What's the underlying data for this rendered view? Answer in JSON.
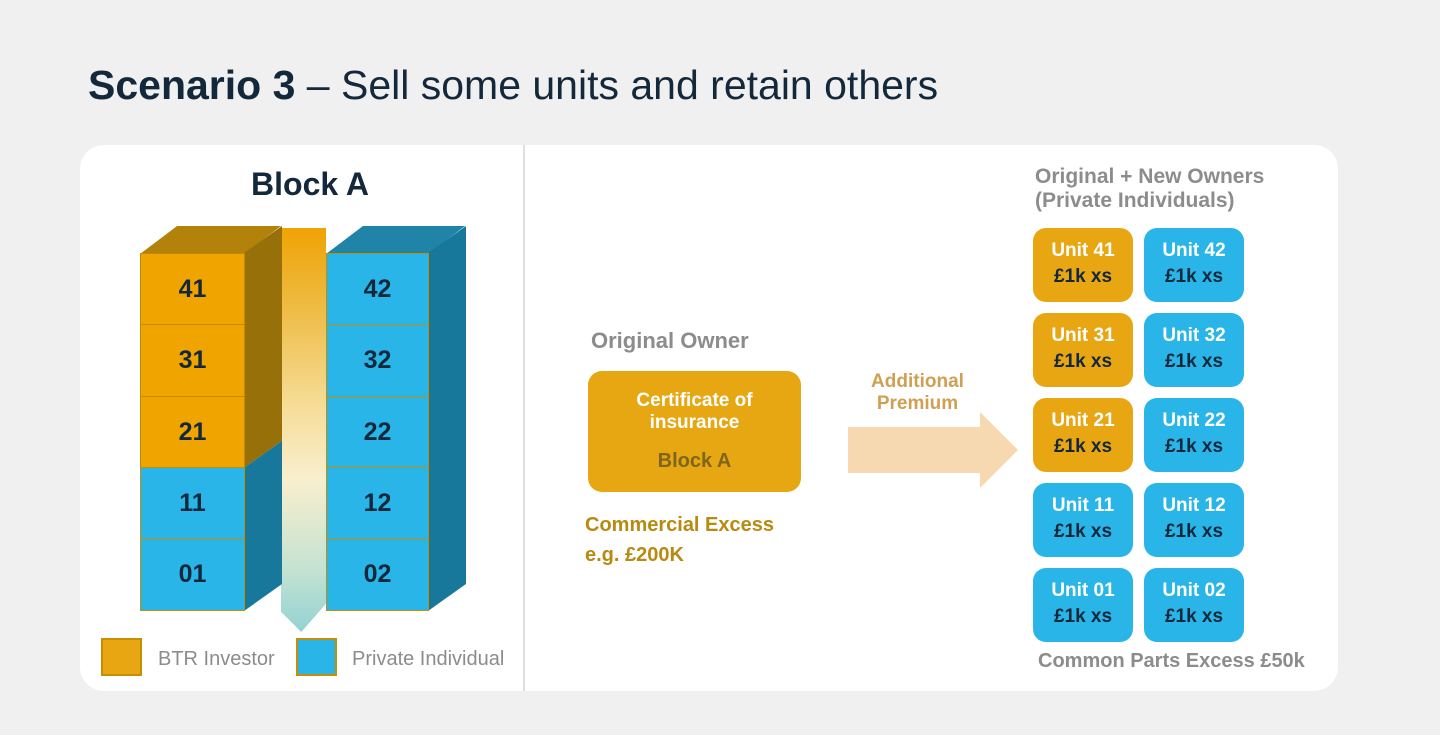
{
  "title": {
    "emphasis": "Scenario 3",
    "rest": " – Sell some units and retain others"
  },
  "block": {
    "heading": "Block A",
    "left_tower": [
      {
        "label": "41",
        "type": "btr"
      },
      {
        "label": "31",
        "type": "btr"
      },
      {
        "label": "21",
        "type": "btr"
      },
      {
        "label": "11",
        "type": "private"
      },
      {
        "label": "01",
        "type": "private"
      }
    ],
    "right_tower": [
      {
        "label": "42",
        "type": "private"
      },
      {
        "label": "32",
        "type": "private"
      },
      {
        "label": "22",
        "type": "private"
      },
      {
        "label": "12",
        "type": "private"
      },
      {
        "label": "02",
        "type": "private"
      }
    ],
    "legend": [
      {
        "label": "BTR Investor",
        "type": "btr"
      },
      {
        "label": "Private Individual",
        "type": "private"
      }
    ]
  },
  "flow": {
    "owner_heading": "Original Owner",
    "certificate_title": "Certificate of insurance",
    "certificate_subtitle": "Block A",
    "excess_label": "Commercial Excess",
    "excess_value": "e.g. £200K",
    "arrow_label_line1": "Additional",
    "arrow_label_line2": "Premium"
  },
  "owners": {
    "heading_line1": "Original + New Owners",
    "heading_line2": "(Private Individuals)",
    "units": [
      {
        "name": "Unit 41",
        "excess": "£1k xs",
        "type": "btr"
      },
      {
        "name": "Unit 42",
        "excess": "£1k xs",
        "type": "private"
      },
      {
        "name": "Unit 31",
        "excess": "£1k xs",
        "type": "btr"
      },
      {
        "name": "Unit 32",
        "excess": "£1k xs",
        "type": "private"
      },
      {
        "name": "Unit 21",
        "excess": "£1k xs",
        "type": "btr"
      },
      {
        "name": "Unit 22",
        "excess": "£1k xs",
        "type": "private"
      },
      {
        "name": "Unit 11",
        "excess": "£1k xs",
        "type": "private"
      },
      {
        "name": "Unit 12",
        "excess": "£1k xs",
        "type": "private"
      },
      {
        "name": "Unit 01",
        "excess": "£1k xs",
        "type": "private"
      },
      {
        "name": "Unit 02",
        "excess": "£1k xs",
        "type": "private"
      }
    ],
    "footer": "Common Parts Excess £50k"
  },
  "colors": {
    "background": "#F0F0F1",
    "card": "#FFFFFF",
    "navy_text": "#14283C",
    "gray_text": "#8C8C8C",
    "btr_orange": "#E9A613",
    "private_blue": "#29B5E8",
    "gold_text": "#B98A10",
    "tan_text": "#CFA053",
    "arrow_fill": "#F6D9B0"
  }
}
